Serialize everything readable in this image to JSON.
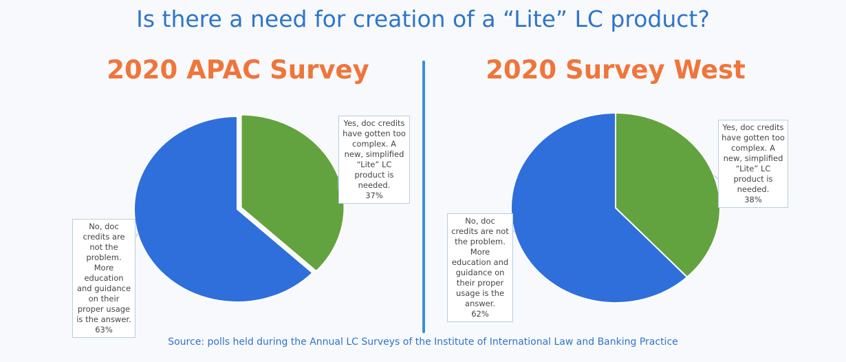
{
  "title": "Is there a need for creation of a “Lite” LC product?",
  "source": "Source: polls held during the Annual LC Surveys of the Institute of International Law and Banking Practice",
  "colors": {
    "yes": "#62a33f",
    "no": "#2f6fdc",
    "title": "#2e74c9",
    "survey_title": "#f0753a"
  },
  "chart_data": [
    {
      "type": "pie",
      "title": "2020 APAC Survey",
      "slices": [
        {
          "label": "Yes, doc credits have gotten too complex. A new, simplified “Lite” LC product is needed.",
          "value": 37,
          "pct_label": "37%",
          "color": "#62a33f"
        },
        {
          "label": "No, doc credits are not the problem. More education and guidance on their proper usage is the answer.",
          "value": 63,
          "pct_label": "63%",
          "color": "#2f6fdc"
        }
      ]
    },
    {
      "type": "pie",
      "title": "2020 Survey West",
      "slices": [
        {
          "label": "Yes, doc credits have gotten too complex. A new, simplified “Lite” LC product is needed.",
          "value": 38,
          "pct_label": "38%",
          "color": "#62a33f"
        },
        {
          "label": "No, doc credits are not the problem. More education and guidance on their proper usage is the answer.",
          "value": 62,
          "pct_label": "62%",
          "color": "#2f6fdc"
        }
      ]
    }
  ]
}
